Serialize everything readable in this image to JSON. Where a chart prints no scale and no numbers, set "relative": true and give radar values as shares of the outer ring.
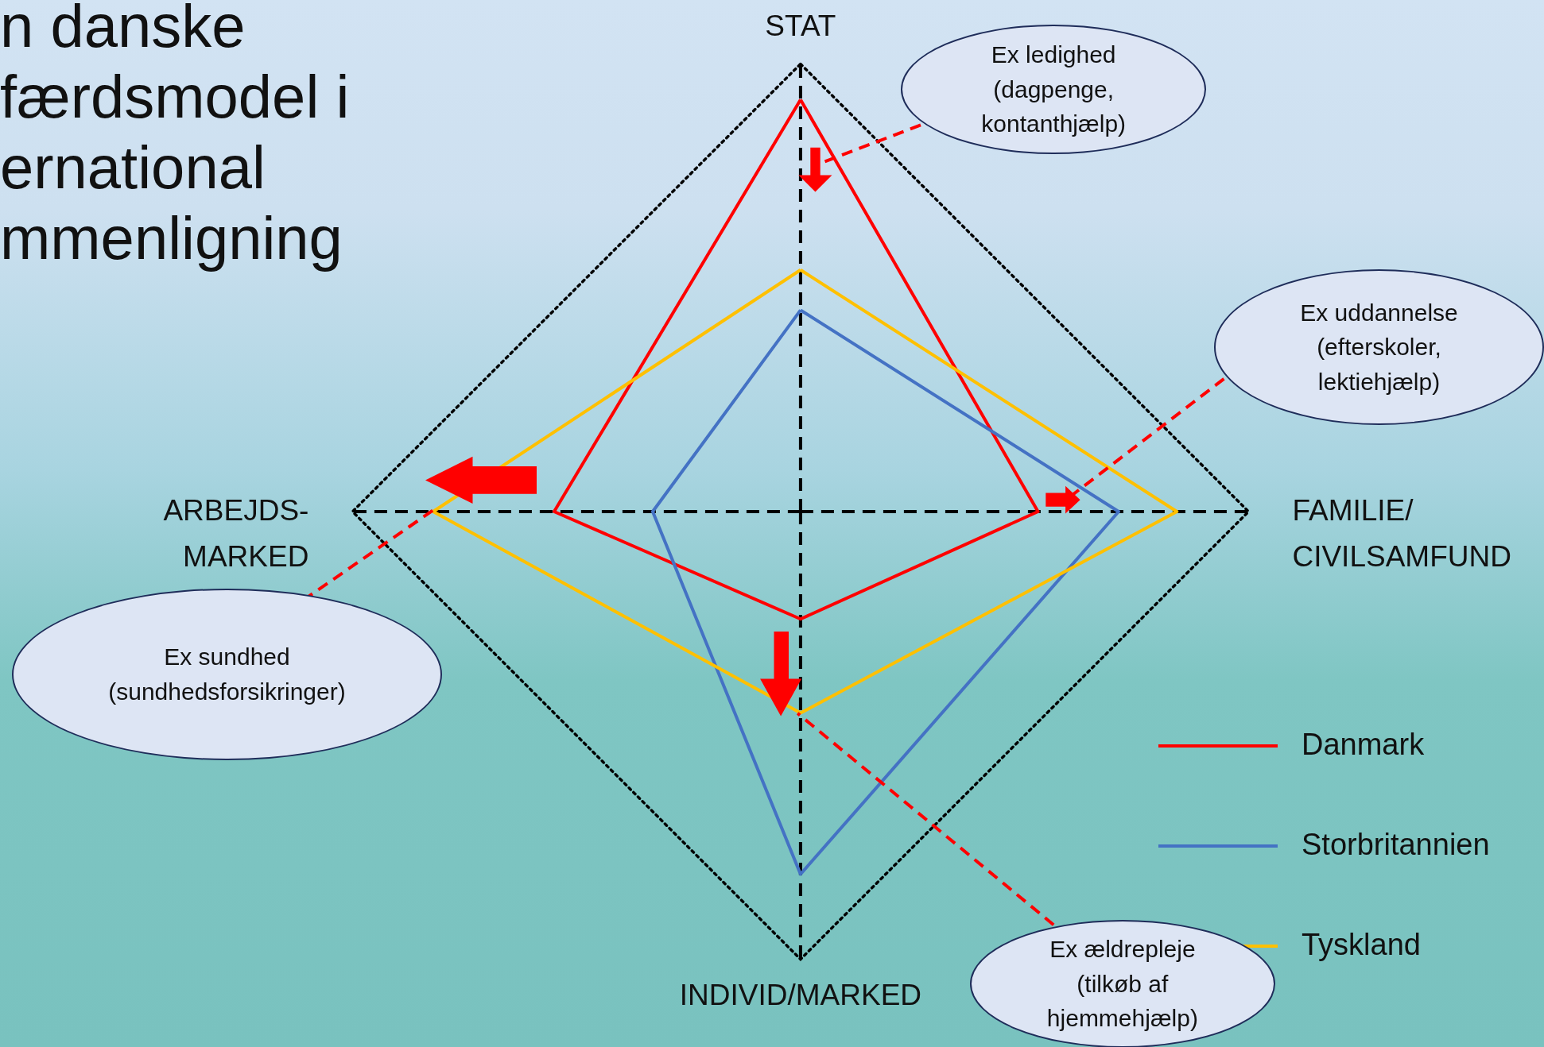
{
  "chart_data": {
    "type": "radar",
    "title": "n danske\nfærdsmodel i\nernational\nmmenligning",
    "categories": [
      "STAT",
      "FAMILIE/\nCIVILSAMFUND",
      "INDIVID/MARKED",
      "ARBEJDS-\nMARKED"
    ],
    "relative": true,
    "grid": true,
    "legend": "bottom right",
    "series": [
      {
        "name": "Danmark",
        "color": "#ff0000",
        "values": [
          0.92,
          0.53,
          0.24,
          0.55
        ]
      },
      {
        "name": "Storbritannien",
        "color": "#4472c4",
        "values": [
          0.45,
          0.71,
          0.81,
          0.33
        ]
      },
      {
        "name": "Tyskland",
        "color": "#ffc000",
        "values": [
          0.54,
          0.84,
          0.45,
          0.82
        ]
      }
    ],
    "annotations": [
      "Ex ledighed\n(dagpenge,\nkontanthjælp)",
      "Ex uddannelse\n(efterskoler,\nlektiehjælp)",
      "Ex sundhed\n(sundhedsforsikringer)",
      "Ex ældrepleje\n(tilkøb af\nhjemmehjælp)"
    ]
  }
}
